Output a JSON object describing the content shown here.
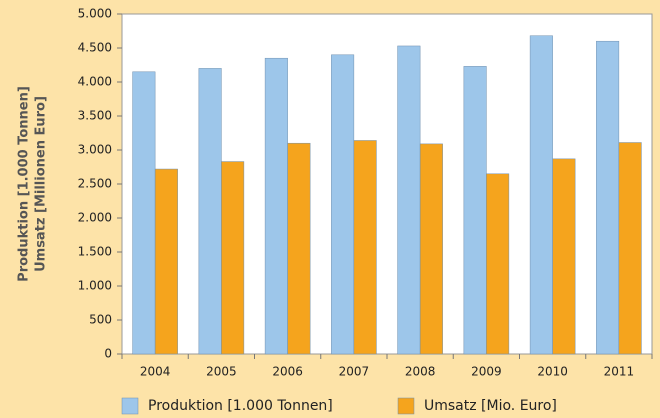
{
  "chart_data": {
    "type": "bar",
    "ylabel": [
      "Produktion [1.000 Tonnen]",
      "Umsatz [Millionen Euro]"
    ],
    "categories": [
      "2004",
      "2005",
      "2006",
      "2007",
      "2008",
      "2009",
      "2010",
      "2011"
    ],
    "series": [
      {
        "name": "Produktion [1.000 Tonnen]",
        "color": "#9dc6ea",
        "values": [
          4150,
          4200,
          4350,
          4400,
          4530,
          4230,
          4680,
          4600
        ]
      },
      {
        "name": "Umsatz [Mio. Euro]",
        "color": "#f5a41d",
        "values": [
          2720,
          2830,
          3100,
          3140,
          3090,
          2650,
          2870,
          3110
        ]
      }
    ],
    "ylim": [
      0,
      5000
    ],
    "yticks": [
      0,
      500,
      {
        "value": 1000,
        "label": "1.000"
      },
      {
        "value": 1500,
        "label": "1.500"
      },
      {
        "value": 2000,
        "label": "2.000"
      },
      {
        "value": 2500,
        "label": "2.500"
      },
      {
        "value": 3000,
        "label": "3.000"
      },
      {
        "value": 3500,
        "label": "3.500"
      },
      {
        "value": 4000,
        "label": "4.000"
      },
      {
        "value": 4500,
        "label": "4.500"
      },
      {
        "value": 5000,
        "label": "5.000"
      }
    ],
    "grid": false,
    "legend": "bottom"
  }
}
